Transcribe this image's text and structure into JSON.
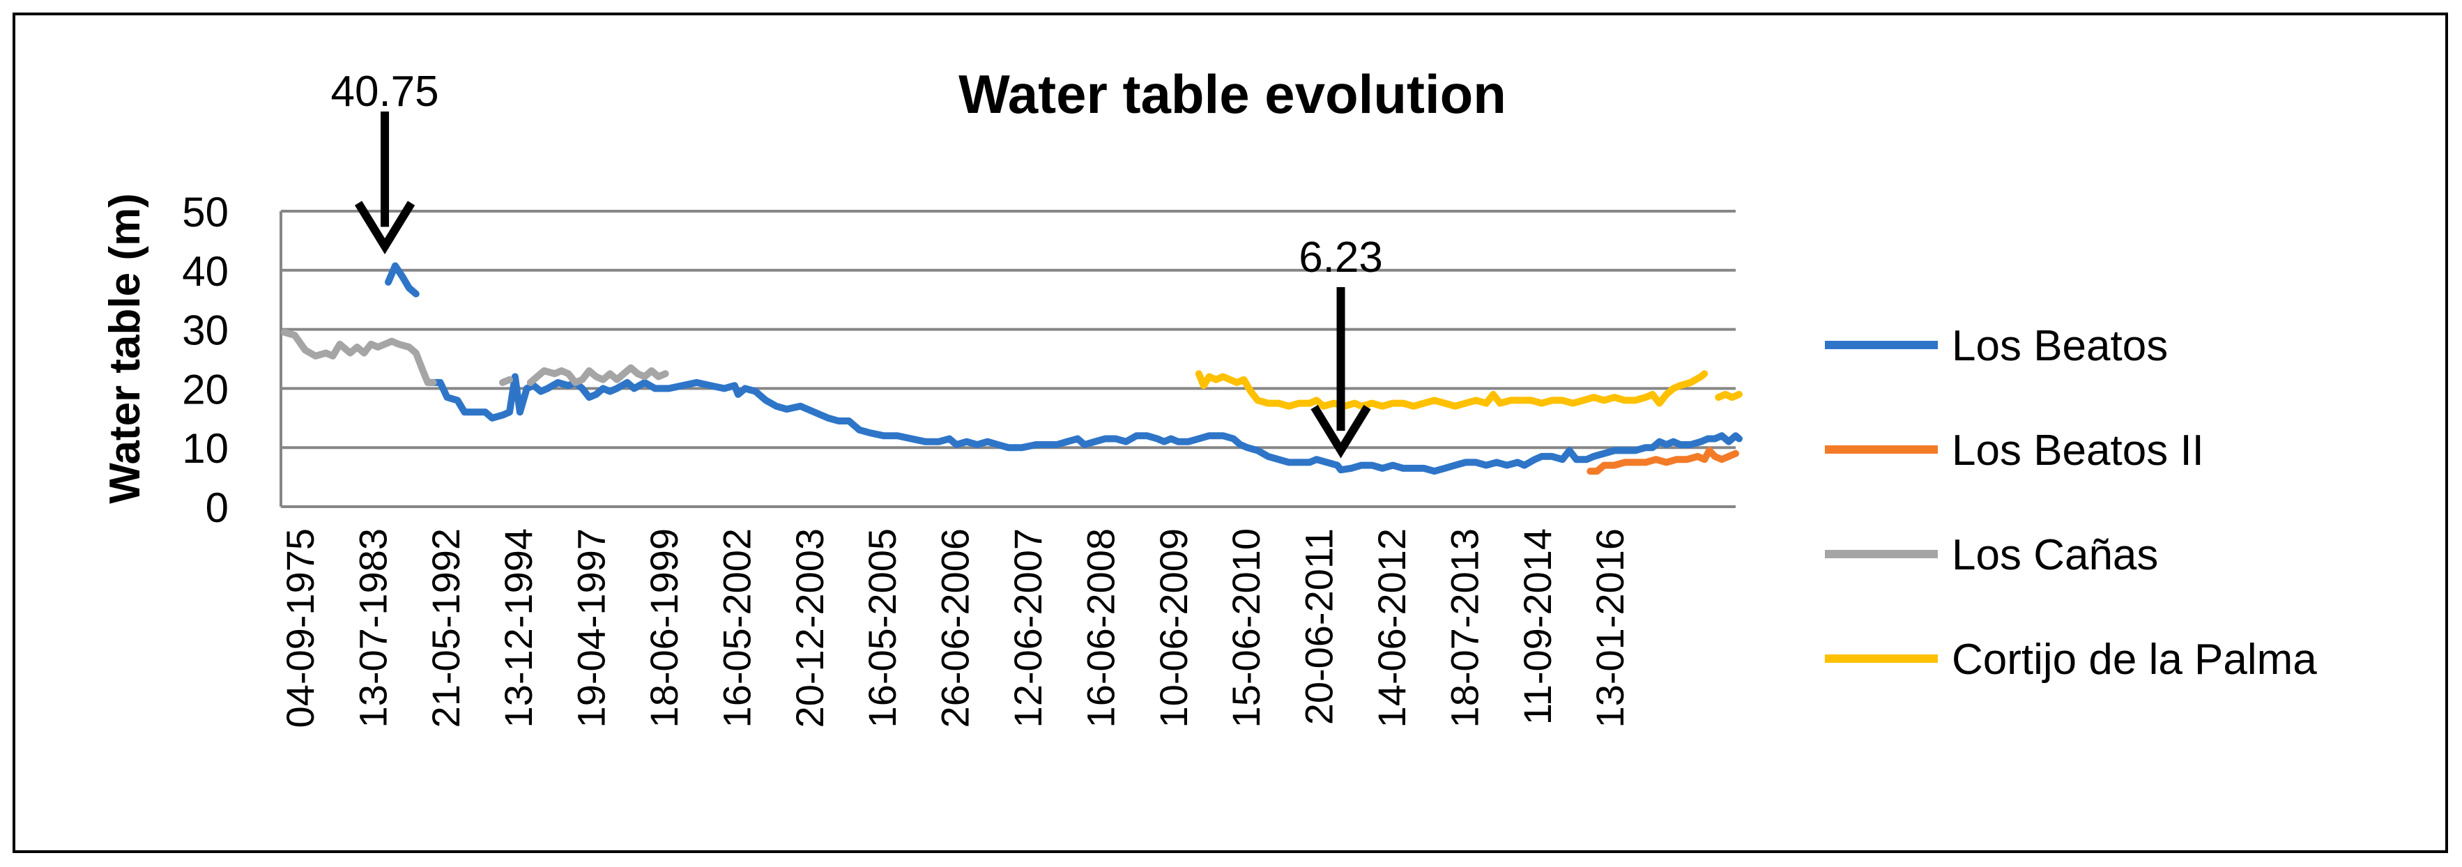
{
  "chart_data": {
    "type": "line",
    "title": "Water table evolution",
    "xlabel": "",
    "ylabel": "Water table (m)",
    "ylim": [
      0,
      50
    ],
    "yticks": [
      "0",
      "10",
      "20",
      "30",
      "40",
      "50"
    ],
    "grid": true,
    "legend_position": "right",
    "x_tick_labels": [
      "04-09-1975",
      "13-07-1983",
      "21-05-1992",
      "13-12-1994",
      "19-04-1997",
      "18-06-1999",
      "16-05-2002",
      "20-12-2003",
      "16-05-2005",
      "26-06-2006",
      "12-06-2007",
      "16-06-2008",
      "10-06-2009",
      "15-06-2010",
      "20-06-2011",
      "14-06-2012",
      "18-07-2013",
      "11-09-2014",
      "13-01-2016"
    ],
    "x_range": [
      0,
      21
    ],
    "annotations": [
      {
        "label": "40.75",
        "x": 1.5,
        "value": 40.75
      },
      {
        "label": "6.23",
        "x": 15.3,
        "value": 6.23
      }
    ],
    "series": [
      {
        "name": "Los Beatos",
        "color": "#2E75C8",
        "segments": [
          [
            [
              1.55,
              38
            ],
            [
              1.65,
              40.75
            ],
            [
              1.75,
              39
            ],
            [
              1.85,
              37
            ],
            [
              1.95,
              36
            ]
          ],
          [
            [
              2.15,
              21
            ],
            [
              2.3,
              21
            ],
            [
              2.4,
              18.5
            ],
            [
              2.55,
              18
            ],
            [
              2.65,
              16
            ],
            [
              2.8,
              16
            ],
            [
              2.95,
              16
            ],
            [
              3.05,
              15
            ],
            [
              3.2,
              15.5
            ],
            [
              3.3,
              16
            ],
            [
              3.38,
              22
            ],
            [
              3.45,
              16
            ],
            [
              3.55,
              20
            ],
            [
              3.65,
              20.5
            ],
            [
              3.75,
              19.5
            ],
            [
              3.85,
              20
            ],
            [
              4.0,
              21
            ],
            [
              4.15,
              20.5
            ],
            [
              4.25,
              21
            ],
            [
              4.35,
              20
            ],
            [
              4.45,
              18.5
            ],
            [
              4.55,
              19
            ],
            [
              4.65,
              20
            ],
            [
              4.75,
              19.5
            ],
            [
              4.85,
              20
            ],
            [
              5.0,
              21
            ],
            [
              5.1,
              20
            ],
            [
              5.25,
              21
            ],
            [
              5.4,
              20
            ],
            [
              5.6,
              20
            ],
            [
              5.8,
              20.5
            ],
            [
              6.0,
              21
            ],
            [
              6.2,
              20.5
            ],
            [
              6.4,
              20
            ],
            [
              6.55,
              20.5
            ],
            [
              6.6,
              19
            ],
            [
              6.7,
              20
            ],
            [
              6.85,
              19.5
            ],
            [
              7.0,
              18
            ],
            [
              7.15,
              17
            ],
            [
              7.3,
              16.5
            ],
            [
              7.5,
              17
            ],
            [
              7.7,
              16
            ],
            [
              7.9,
              15
            ],
            [
              8.05,
              14.5
            ],
            [
              8.2,
              14.5
            ],
            [
              8.35,
              13
            ],
            [
              8.5,
              12.5
            ],
            [
              8.7,
              12
            ],
            [
              8.9,
              12
            ],
            [
              9.1,
              11.5
            ],
            [
              9.3,
              11
            ],
            [
              9.5,
              11
            ],
            [
              9.65,
              11.5
            ],
            [
              9.75,
              10.5
            ],
            [
              9.9,
              11
            ],
            [
              10.05,
              10.5
            ],
            [
              10.2,
              11
            ],
            [
              10.35,
              10.5
            ],
            [
              10.5,
              10
            ],
            [
              10.7,
              10
            ],
            [
              10.9,
              10.5
            ],
            [
              11.05,
              10.5
            ],
            [
              11.2,
              10.5
            ],
            [
              11.35,
              11
            ],
            [
              11.5,
              11.5
            ],
            [
              11.6,
              10.5
            ],
            [
              11.75,
              11
            ],
            [
              11.9,
              11.5
            ],
            [
              12.05,
              11.5
            ],
            [
              12.2,
              11
            ],
            [
              12.35,
              12
            ],
            [
              12.5,
              12
            ],
            [
              12.65,
              11.5
            ],
            [
              12.75,
              11
            ],
            [
              12.85,
              11.5
            ],
            [
              12.95,
              11
            ],
            [
              13.1,
              11
            ],
            [
              13.25,
              11.5
            ],
            [
              13.4,
              12
            ],
            [
              13.6,
              12
            ],
            [
              13.75,
              11.5
            ],
            [
              13.85,
              10.5
            ],
            [
              13.95,
              10
            ],
            [
              14.1,
              9.5
            ],
            [
              14.25,
              8.5
            ],
            [
              14.4,
              8
            ],
            [
              14.55,
              7.5
            ],
            [
              14.7,
              7.5
            ],
            [
              14.85,
              7.5
            ],
            [
              14.95,
              8
            ],
            [
              15.1,
              7.5
            ],
            [
              15.25,
              7
            ],
            [
              15.3,
              6.23
            ],
            [
              15.45,
              6.5
            ],
            [
              15.6,
              7
            ],
            [
              15.75,
              7
            ],
            [
              15.9,
              6.5
            ],
            [
              16.05,
              7
            ],
            [
              16.2,
              6.5
            ],
            [
              16.35,
              6.5
            ],
            [
              16.5,
              6.5
            ],
            [
              16.65,
              6
            ],
            [
              16.8,
              6.5
            ],
            [
              16.95,
              7
            ],
            [
              17.1,
              7.5
            ],
            [
              17.25,
              7.5
            ],
            [
              17.4,
              7
            ],
            [
              17.55,
              7.5
            ],
            [
              17.7,
              7
            ],
            [
              17.85,
              7.5
            ],
            [
              17.95,
              7
            ],
            [
              18.1,
              8
            ],
            [
              18.2,
              8.5
            ],
            [
              18.35,
              8.5
            ],
            [
              18.5,
              8
            ],
            [
              18.6,
              9.5
            ],
            [
              18.7,
              8
            ],
            [
              18.85,
              8
            ],
            [
              18.95,
              8.5
            ],
            [
              19.1,
              9
            ],
            [
              19.25,
              9.5
            ],
            [
              19.4,
              9.5
            ],
            [
              19.55,
              9.5
            ],
            [
              19.7,
              10
            ],
            [
              19.8,
              10
            ],
            [
              19.9,
              11
            ],
            [
              20.0,
              10.5
            ],
            [
              20.1,
              11
            ],
            [
              20.2,
              10.5
            ],
            [
              20.35,
              10.5
            ],
            [
              20.5,
              11
            ],
            [
              20.6,
              11.5
            ],
            [
              20.7,
              11.5
            ],
            [
              20.8,
              12
            ],
            [
              20.9,
              11
            ],
            [
              21.0,
              12
            ],
            [
              21.05,
              11.5
            ]
          ]
        ]
      },
      {
        "name": "Los Beatos II",
        "color": "#F37B28",
        "segments": [
          [
            [
              18.9,
              6
            ],
            [
              19.0,
              6
            ],
            [
              19.1,
              7
            ],
            [
              19.25,
              7
            ],
            [
              19.4,
              7.5
            ],
            [
              19.55,
              7.5
            ],
            [
              19.7,
              7.5
            ],
            [
              19.85,
              8
            ],
            [
              20.0,
              7.5
            ],
            [
              20.15,
              8
            ],
            [
              20.3,
              8
            ],
            [
              20.45,
              8.5
            ],
            [
              20.55,
              8
            ],
            [
              20.62,
              9.5
            ],
            [
              20.7,
              8.5
            ],
            [
              20.8,
              8
            ],
            [
              20.9,
              8.5
            ],
            [
              21.0,
              9
            ]
          ]
        ]
      },
      {
        "name": "Los Cañas",
        "color": "#A5A5A5",
        "segments": [
          [
            [
              0.05,
              29.5
            ],
            [
              0.2,
              29
            ],
            [
              0.35,
              26.5
            ],
            [
              0.5,
              25.5
            ],
            [
              0.65,
              26
            ],
            [
              0.75,
              25.5
            ],
            [
              0.85,
              27.5
            ],
            [
              1.0,
              26
            ],
            [
              1.1,
              27
            ],
            [
              1.2,
              26
            ],
            [
              1.3,
              27.5
            ],
            [
              1.4,
              27
            ],
            [
              1.5,
              27.5
            ],
            [
              1.6,
              28
            ],
            [
              1.7,
              27.5
            ],
            [
              1.85,
              27
            ],
            [
              1.95,
              26
            ],
            [
              2.05,
              23
            ],
            [
              2.12,
              21
            ],
            [
              2.2,
              21
            ]
          ],
          [
            [
              3.2,
              21
            ],
            [
              3.3,
              21.5
            ]
          ],
          [
            [
              3.6,
              21
            ],
            [
              3.7,
              22
            ],
            [
              3.8,
              23
            ],
            [
              3.95,
              22.5
            ],
            [
              4.05,
              23
            ],
            [
              4.15,
              22.5
            ],
            [
              4.25,
              21
            ],
            [
              4.35,
              21.5
            ],
            [
              4.45,
              23
            ],
            [
              4.55,
              22
            ],
            [
              4.65,
              21.5
            ],
            [
              4.75,
              22.5
            ],
            [
              4.85,
              21.5
            ],
            [
              4.95,
              22.5
            ],
            [
              5.05,
              23.5
            ],
            [
              5.15,
              22.5
            ],
            [
              5.25,
              22
            ],
            [
              5.35,
              23
            ],
            [
              5.45,
              22
            ],
            [
              5.55,
              22.5
            ]
          ]
        ]
      },
      {
        "name": "Cortijo de la Palma",
        "color": "#FFC000",
        "segments": [
          [
            [
              13.25,
              22.5
            ],
            [
              13.32,
              20.5
            ],
            [
              13.4,
              22
            ],
            [
              13.5,
              21.5
            ],
            [
              13.6,
              22
            ],
            [
              13.7,
              21.5
            ],
            [
              13.8,
              21
            ],
            [
              13.9,
              21.5
            ],
            [
              14.0,
              19.5
            ],
            [
              14.1,
              18
            ],
            [
              14.25,
              17.5
            ],
            [
              14.4,
              17.5
            ],
            [
              14.55,
              17
            ],
            [
              14.7,
              17.5
            ],
            [
              14.85,
              17.5
            ],
            [
              14.95,
              18
            ],
            [
              15.05,
              17
            ],
            [
              15.2,
              17.5
            ],
            [
              15.35,
              17
            ],
            [
              15.5,
              17.5
            ],
            [
              15.6,
              17
            ],
            [
              15.75,
              17.5
            ],
            [
              15.9,
              17
            ],
            [
              16.05,
              17.5
            ],
            [
              16.2,
              17.5
            ],
            [
              16.35,
              17
            ],
            [
              16.5,
              17.5
            ],
            [
              16.65,
              18
            ],
            [
              16.8,
              17.5
            ],
            [
              16.95,
              17
            ],
            [
              17.1,
              17.5
            ],
            [
              17.25,
              18
            ],
            [
              17.4,
              17.5
            ],
            [
              17.5,
              19
            ],
            [
              17.6,
              17.5
            ],
            [
              17.75,
              18
            ],
            [
              17.9,
              18
            ],
            [
              18.05,
              18
            ],
            [
              18.2,
              17.5
            ],
            [
              18.35,
              18
            ],
            [
              18.5,
              18
            ],
            [
              18.65,
              17.5
            ],
            [
              18.8,
              18
            ],
            [
              18.95,
              18.5
            ],
            [
              19.1,
              18
            ],
            [
              19.25,
              18.5
            ],
            [
              19.4,
              18
            ],
            [
              19.55,
              18
            ],
            [
              19.7,
              18.5
            ],
            [
              19.8,
              19
            ],
            [
              19.9,
              17.5
            ],
            [
              20.0,
              19
            ],
            [
              20.1,
              20
            ],
            [
              20.2,
              20.5
            ],
            [
              20.35,
              21
            ],
            [
              20.5,
              22
            ],
            [
              20.55,
              22.5
            ]
          ],
          [
            [
              20.75,
              18.5
            ],
            [
              20.85,
              19
            ],
            [
              20.95,
              18.5
            ],
            [
              21.05,
              19
            ]
          ]
        ]
      }
    ]
  }
}
